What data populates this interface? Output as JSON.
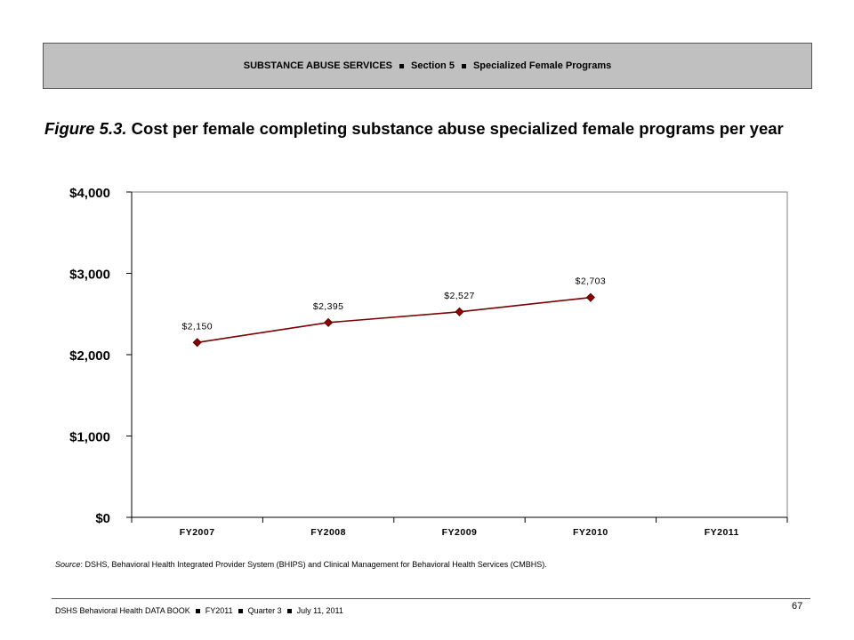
{
  "header": {
    "parts": [
      "SUBSTANCE ABUSE SERVICES",
      "Section 5",
      "Specialized Female Programs"
    ]
  },
  "title": {
    "figure_label": "Figure 5.3.",
    "text": "Cost per female completing substance abuse specialized female programs per year"
  },
  "chart_data": {
    "type": "line",
    "categories": [
      "FY2007",
      "FY2008",
      "FY2009",
      "FY2010",
      "FY2011"
    ],
    "series": [
      {
        "values": [
          2150,
          2395,
          2527,
          2703,
          null
        ],
        "labels": [
          "$2,150",
          "$2,395",
          "$2,527",
          "$2,703",
          ""
        ]
      }
    ],
    "ylim": [
      0,
      4000
    ],
    "yticks": [
      0,
      1000,
      2000,
      3000,
      4000
    ],
    "ytick_labels": [
      "$0",
      "$1,000",
      "$2,000",
      "$3,000",
      "$4,000"
    ],
    "grid": false,
    "legend": "none",
    "colors": {
      "line": "#7b0000",
      "marker": "#8b0000"
    }
  },
  "source": {
    "label": "Source",
    "text": ": DSHS, Behavioral Health Integrated Provider System (BHIPS) and Clinical Management for Behavioral Health Services (CMBHS)."
  },
  "footer": {
    "parts": [
      "DSHS Behavioral Health DATA BOOK",
      "FY2011",
      "Quarter 3",
      "July 11, 2011"
    ],
    "page_number": "67"
  }
}
